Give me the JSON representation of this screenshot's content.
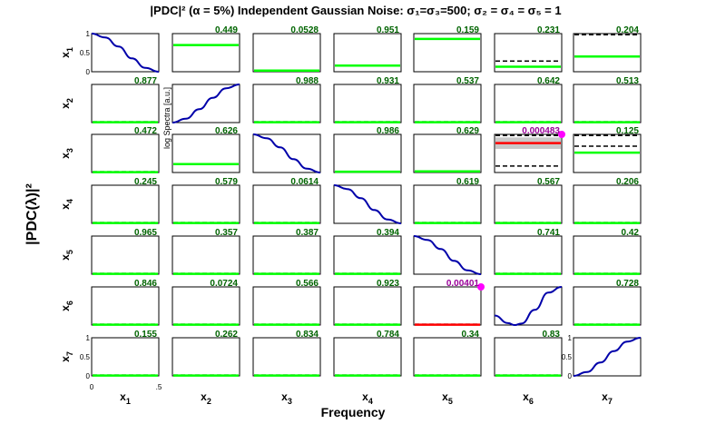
{
  "figure": {
    "title": "|PDC|² (α = 5%)  Independent Gaussian Noise: σ₁=σ₃=500; σ₂ = σ₄ = σ₅ = 1",
    "ylabel": "|PDC(λ)|²",
    "xlabel": "Frequency",
    "inset_label": "log Spectra [a.u.]",
    "row_labels": [
      "x1",
      "x2",
      "x3",
      "x4",
      "x5",
      "x6",
      "x7"
    ],
    "col_labels": [
      "x1",
      "x2",
      "x3",
      "x4",
      "x5",
      "x6",
      "x7"
    ],
    "y_ticks": [
      "1",
      "0.5",
      "0"
    ],
    "x_ticks": [
      "0",
      ".5"
    ],
    "colors": {
      "axes_bg": "#ffffff",
      "frame": "#000000",
      "spectrum": "#0000aa",
      "nonsignificant": "#00ff00",
      "significant": "#ff0000",
      "threshold": "#000000",
      "confidence_band": "#c8c8c8",
      "pvalue_text": "#006400",
      "significant_pvalue_text": "#990099",
      "significant_marker": "#ff00ff"
    }
  },
  "chart_data": {
    "type": "matrix",
    "freq_range": [
      0,
      0.5
    ],
    "ylim": [
      0,
      1
    ],
    "diagonal_spectra": [
      {
        "variable": "x1",
        "x": [
          0,
          0.1,
          0.2,
          0.3,
          0.4,
          0.5
        ],
        "y": [
          1.0,
          0.9,
          0.66,
          0.35,
          0.1,
          0.0
        ]
      },
      {
        "variable": "x2",
        "x": [
          0,
          0.1,
          0.2,
          0.3,
          0.4,
          0.5
        ],
        "y": [
          0.0,
          0.1,
          0.35,
          0.65,
          0.9,
          1.0
        ]
      },
      {
        "variable": "x3",
        "x": [
          0,
          0.1,
          0.2,
          0.3,
          0.4,
          0.5
        ],
        "y": [
          1.0,
          0.9,
          0.66,
          0.35,
          0.1,
          0.0
        ]
      },
      {
        "variable": "x4",
        "x": [
          0,
          0.1,
          0.2,
          0.3,
          0.4,
          0.5
        ],
        "y": [
          1.0,
          0.9,
          0.66,
          0.35,
          0.1,
          0.0
        ]
      },
      {
        "variable": "x5",
        "x": [
          0,
          0.1,
          0.2,
          0.3,
          0.4,
          0.5
        ],
        "y": [
          1.0,
          0.9,
          0.66,
          0.35,
          0.1,
          0.0
        ]
      },
      {
        "variable": "x6",
        "x": [
          0,
          0.1,
          0.15,
          0.2,
          0.3,
          0.4,
          0.5
        ],
        "y": [
          0.25,
          0.05,
          0.0,
          0.04,
          0.4,
          0.85,
          1.0
        ]
      },
      {
        "variable": "x7",
        "x": [
          0,
          0.1,
          0.2,
          0.3,
          0.4,
          0.5
        ],
        "y": [
          0.0,
          0.1,
          0.35,
          0.65,
          0.9,
          1.0
        ]
      }
    ],
    "pdc_cells": [
      {
        "row": 1,
        "col": 2,
        "pvalue": "0.449",
        "pdc": 0.7,
        "threshold": null,
        "significant": false
      },
      {
        "row": 1,
        "col": 3,
        "pvalue": "0.0528",
        "pdc": 0.03,
        "threshold": null,
        "significant": false
      },
      {
        "row": 1,
        "col": 4,
        "pvalue": "0.951",
        "pdc": 0.16,
        "threshold": null,
        "significant": false
      },
      {
        "row": 1,
        "col": 5,
        "pvalue": "0.159",
        "pdc": 0.86,
        "threshold": null,
        "significant": false
      },
      {
        "row": 1,
        "col": 6,
        "pvalue": "0.231",
        "pdc": 0.13,
        "threshold": 0.28,
        "significant": false
      },
      {
        "row": 1,
        "col": 7,
        "pvalue": "0.204",
        "pdc": 0.4,
        "threshold": 0.97,
        "significant": false
      },
      {
        "row": 2,
        "col": 1,
        "pvalue": "0.877",
        "pdc": 0.01,
        "threshold": 0.02,
        "significant": false
      },
      {
        "row": 2,
        "col": 3,
        "pvalue": "0.988",
        "pdc": 0.01,
        "threshold": 0.02,
        "significant": false
      },
      {
        "row": 2,
        "col": 4,
        "pvalue": "0.931",
        "pdc": 0.01,
        "threshold": 0.02,
        "significant": false
      },
      {
        "row": 2,
        "col": 5,
        "pvalue": "0.537",
        "pdc": 0.01,
        "threshold": 0.02,
        "significant": false
      },
      {
        "row": 2,
        "col": 6,
        "pvalue": "0.642",
        "pdc": 0.01,
        "threshold": 0.02,
        "significant": false
      },
      {
        "row": 2,
        "col": 7,
        "pvalue": "0.513",
        "pdc": 0.01,
        "threshold": 0.02,
        "significant": false
      },
      {
        "row": 3,
        "col": 1,
        "pvalue": "0.472",
        "pdc": 0.01,
        "threshold": 0.02,
        "significant": false
      },
      {
        "row": 3,
        "col": 2,
        "pvalue": "0.626",
        "pdc": 0.22,
        "threshold": null,
        "significant": false
      },
      {
        "row": 3,
        "col": 4,
        "pvalue": "0.986",
        "pdc": 0.02,
        "threshold": 0.03,
        "significant": false
      },
      {
        "row": 3,
        "col": 5,
        "pvalue": "0.629",
        "pdc": 0.03,
        "threshold": null,
        "significant": false
      },
      {
        "row": 3,
        "col": 6,
        "pvalue": "0.000483",
        "pdc": 0.77,
        "threshold": 0.17,
        "threshold_upper": 0.97,
        "band": [
          0.62,
          0.92
        ],
        "significant": true
      },
      {
        "row": 3,
        "col": 7,
        "pvalue": "0.125",
        "pdc": 0.52,
        "threshold": 0.69,
        "threshold_upper": 0.97,
        "significant": false
      },
      {
        "row": 4,
        "col": 1,
        "pvalue": "0.245",
        "pdc": 0.01,
        "threshold": 0.02,
        "significant": false
      },
      {
        "row": 4,
        "col": 2,
        "pvalue": "0.579",
        "pdc": 0.01,
        "threshold": 0.02,
        "significant": false
      },
      {
        "row": 4,
        "col": 3,
        "pvalue": "0.0614",
        "pdc": 0.01,
        "threshold": 0.02,
        "significant": false
      },
      {
        "row": 4,
        "col": 5,
        "pvalue": "0.619",
        "pdc": 0.01,
        "threshold": 0.02,
        "significant": false
      },
      {
        "row": 4,
        "col": 6,
        "pvalue": "0.567",
        "pdc": 0.01,
        "threshold": 0.02,
        "significant": false
      },
      {
        "row": 4,
        "col": 7,
        "pvalue": "0.206",
        "pdc": 0.01,
        "threshold": 0.02,
        "significant": false
      },
      {
        "row": 5,
        "col": 1,
        "pvalue": "0.965",
        "pdc": 0.01,
        "threshold": 0.02,
        "significant": false
      },
      {
        "row": 5,
        "col": 2,
        "pvalue": "0.357",
        "pdc": 0.01,
        "threshold": 0.02,
        "significant": false
      },
      {
        "row": 5,
        "col": 3,
        "pvalue": "0.387",
        "pdc": 0.01,
        "threshold": 0.02,
        "significant": false
      },
      {
        "row": 5,
        "col": 4,
        "pvalue": "0.394",
        "pdc": 0.01,
        "threshold": 0.02,
        "significant": false
      },
      {
        "row": 5,
        "col": 6,
        "pvalue": "0.741",
        "pdc": 0.01,
        "threshold": 0.02,
        "significant": false
      },
      {
        "row": 5,
        "col": 7,
        "pvalue": "0.42",
        "pdc": 0.01,
        "threshold": 0.02,
        "significant": false
      },
      {
        "row": 6,
        "col": 1,
        "pvalue": "0.846",
        "pdc": 0.01,
        "threshold": 0.02,
        "significant": false
      },
      {
        "row": 6,
        "col": 2,
        "pvalue": "0.0724",
        "pdc": 0.01,
        "threshold": 0.02,
        "significant": false
      },
      {
        "row": 6,
        "col": 3,
        "pvalue": "0.566",
        "pdc": 0.01,
        "threshold": 0.02,
        "significant": false
      },
      {
        "row": 6,
        "col": 4,
        "pvalue": "0.923",
        "pdc": 0.01,
        "threshold": 0.02,
        "significant": false
      },
      {
        "row": 6,
        "col": 5,
        "pvalue": "0.00401",
        "pdc": 0.01,
        "threshold": 0.02,
        "significant": true
      },
      {
        "row": 6,
        "col": 7,
        "pvalue": "0.728",
        "pdc": 0.01,
        "threshold": 0.02,
        "significant": false
      },
      {
        "row": 7,
        "col": 1,
        "pvalue": "0.155",
        "pdc": 0.01,
        "threshold": 0.02,
        "significant": false
      },
      {
        "row": 7,
        "col": 2,
        "pvalue": "0.262",
        "pdc": 0.01,
        "threshold": 0.02,
        "significant": false
      },
      {
        "row": 7,
        "col": 3,
        "pvalue": "0.834",
        "pdc": 0.01,
        "threshold": 0.02,
        "significant": false
      },
      {
        "row": 7,
        "col": 4,
        "pvalue": "0.784",
        "pdc": 0.01,
        "threshold": 0.02,
        "significant": false
      },
      {
        "row": 7,
        "col": 5,
        "pvalue": "0.34",
        "pdc": 0.01,
        "threshold": 0.02,
        "significant": false
      },
      {
        "row": 7,
        "col": 6,
        "pvalue": "0.83",
        "pdc": 0.01,
        "threshold": 0.02,
        "significant": false
      }
    ]
  }
}
